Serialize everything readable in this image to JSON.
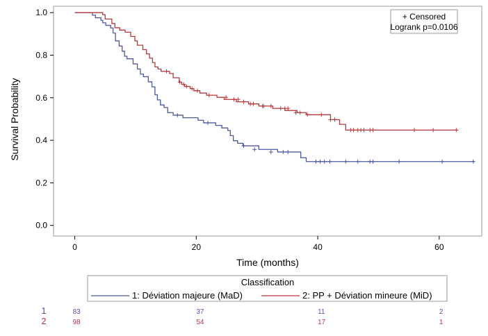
{
  "chart_data": {
    "type": "line",
    "step": true,
    "xlabel": "Time (months)",
    "ylabel": "Survival Probability",
    "xlim": [
      -3.5,
      67
    ],
    "ylim": [
      -0.05,
      1.03
    ],
    "xticks": [
      0,
      20,
      40,
      60
    ],
    "yticks": [
      0.0,
      0.2,
      0.4,
      0.6,
      0.8,
      1.0
    ],
    "ytick_labels": [
      "0.0",
      "0.2",
      "0.4",
      "0.6",
      "0.8",
      "1.0"
    ],
    "grid": false,
    "inset_box": {
      "censored_label": "+ Censored",
      "logrank_label": "Logrank p=0.0106",
      "placement": "top-right"
    },
    "legend": {
      "title": "Classification",
      "placement": "bottom"
    },
    "series": [
      {
        "name": "1: Déviation majeure (MaD)",
        "risk_label": "1",
        "color": "#4a5a9c",
        "steps": [
          [
            0,
            1.0
          ],
          [
            2.9,
            0.988
          ],
          [
            3.4,
            0.976
          ],
          [
            4.3,
            0.964
          ],
          [
            4.6,
            0.952
          ],
          [
            5.1,
            0.94
          ],
          [
            5.9,
            0.928
          ],
          [
            6.3,
            0.904
          ],
          [
            6.7,
            0.867
          ],
          [
            7.3,
            0.843
          ],
          [
            7.8,
            0.819
          ],
          [
            8.2,
            0.795
          ],
          [
            8.6,
            0.783
          ],
          [
            9.6,
            0.759
          ],
          [
            10.3,
            0.735
          ],
          [
            10.8,
            0.711
          ],
          [
            11.3,
            0.699
          ],
          [
            12.1,
            0.675
          ],
          [
            12.7,
            0.651
          ],
          [
            13.2,
            0.614
          ],
          [
            13.6,
            0.59
          ],
          [
            14.1,
            0.566
          ],
          [
            14.7,
            0.554
          ],
          [
            15.3,
            0.53
          ],
          [
            16.2,
            0.518
          ],
          [
            17.8,
            0.506
          ],
          [
            20.3,
            0.494
          ],
          [
            21.2,
            0.482
          ],
          [
            23.2,
            0.47
          ],
          [
            24.2,
            0.458
          ],
          [
            25.2,
            0.446
          ],
          [
            25.6,
            0.422
          ],
          [
            26.1,
            0.398
          ],
          [
            26.8,
            0.386
          ],
          [
            27.7,
            0.374
          ],
          [
            30.3,
            0.357
          ],
          [
            33.4,
            0.345
          ],
          [
            37.2,
            0.318
          ],
          [
            38.1,
            0.3
          ],
          [
            65.8,
            0.3
          ]
        ],
        "censored": [
          [
            16.9,
            0.518
          ],
          [
            21.9,
            0.482
          ],
          [
            27.8,
            0.374
          ],
          [
            29.6,
            0.357
          ],
          [
            32.3,
            0.345
          ],
          [
            34.3,
            0.345
          ],
          [
            35.1,
            0.345
          ],
          [
            39.7,
            0.3
          ],
          [
            40.4,
            0.3
          ],
          [
            41.1,
            0.3
          ],
          [
            42.0,
            0.3
          ],
          [
            44.6,
            0.3
          ],
          [
            46.6,
            0.3
          ],
          [
            48.6,
            0.3
          ],
          [
            49.1,
            0.3
          ],
          [
            53.4,
            0.3
          ],
          [
            60.5,
            0.3
          ],
          [
            65.6,
            0.3
          ]
        ],
        "at_risk": [
          83,
          37,
          11,
          2
        ]
      },
      {
        "name": "2: PP + Déviation mineure (MiD)",
        "risk_label": "2",
        "color": "#b5383c",
        "steps": [
          [
            0,
            1.0
          ],
          [
            4.6,
            0.99
          ],
          [
            5.0,
            0.97
          ],
          [
            6.1,
            0.949
          ],
          [
            6.6,
            0.929
          ],
          [
            7.4,
            0.918
          ],
          [
            8.3,
            0.908
          ],
          [
            9.2,
            0.888
          ],
          [
            9.9,
            0.867
          ],
          [
            10.3,
            0.847
          ],
          [
            11.2,
            0.826
          ],
          [
            11.8,
            0.806
          ],
          [
            12.3,
            0.786
          ],
          [
            12.8,
            0.765
          ],
          [
            13.2,
            0.745
          ],
          [
            13.7,
            0.735
          ],
          [
            14.2,
            0.724
          ],
          [
            15.6,
            0.714
          ],
          [
            16.2,
            0.694
          ],
          [
            17.2,
            0.673
          ],
          [
            17.6,
            0.663
          ],
          [
            18.1,
            0.653
          ],
          [
            19.0,
            0.643
          ],
          [
            19.6,
            0.633
          ],
          [
            20.6,
            0.622
          ],
          [
            21.7,
            0.612
          ],
          [
            23.4,
            0.602
          ],
          [
            24.6,
            0.592
          ],
          [
            26.6,
            0.581
          ],
          [
            28.6,
            0.571
          ],
          [
            30.3,
            0.561
          ],
          [
            32.6,
            0.55
          ],
          [
            34.6,
            0.54
          ],
          [
            36.6,
            0.53
          ],
          [
            38.1,
            0.52
          ],
          [
            42.1,
            0.497
          ],
          [
            43.6,
            0.475
          ],
          [
            44.6,
            0.448
          ],
          [
            63.0,
            0.448
          ]
        ],
        "censored": [
          [
            15.1,
            0.724
          ],
          [
            17.3,
            0.673
          ],
          [
            17.9,
            0.663
          ],
          [
            18.4,
            0.653
          ],
          [
            19.3,
            0.643
          ],
          [
            20.2,
            0.633
          ],
          [
            22.1,
            0.612
          ],
          [
            24.9,
            0.602
          ],
          [
            26.2,
            0.592
          ],
          [
            26.9,
            0.592
          ],
          [
            27.8,
            0.581
          ],
          [
            28.9,
            0.571
          ],
          [
            29.4,
            0.571
          ],
          [
            30.9,
            0.561
          ],
          [
            31.1,
            0.561
          ],
          [
            32.3,
            0.561
          ],
          [
            33.9,
            0.55
          ],
          [
            34.6,
            0.55
          ],
          [
            35.1,
            0.55
          ],
          [
            36.4,
            0.53
          ],
          [
            37.1,
            0.53
          ],
          [
            38.3,
            0.52
          ],
          [
            40.6,
            0.52
          ],
          [
            42.1,
            0.497
          ],
          [
            42.8,
            0.497
          ],
          [
            45.4,
            0.448
          ],
          [
            45.9,
            0.448
          ],
          [
            46.6,
            0.448
          ],
          [
            47.1,
            0.448
          ],
          [
            47.6,
            0.448
          ],
          [
            48.6,
            0.448
          ],
          [
            49.1,
            0.448
          ],
          [
            55.9,
            0.448
          ],
          [
            59.0,
            0.448
          ],
          [
            62.8,
            0.448
          ]
        ],
        "at_risk": [
          98,
          54,
          17,
          1
        ]
      }
    ],
    "at_risk_times": [
      0,
      20,
      40,
      60
    ]
  }
}
